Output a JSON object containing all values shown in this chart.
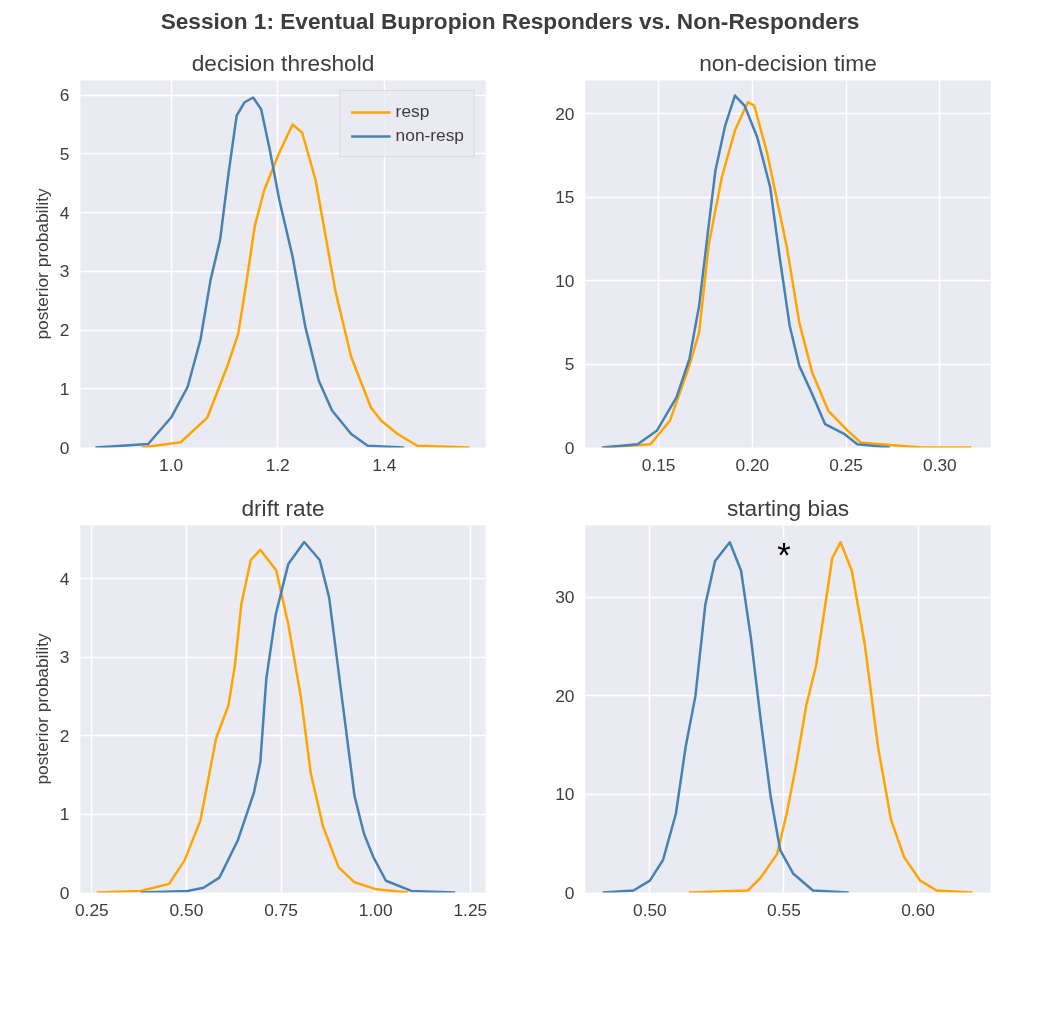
{
  "chart_data": [
    {
      "type": "line",
      "title": "decision threshold",
      "ylabel": "posterior probability",
      "annotations": [
        "Session 1: Eventual Bupropion Responders vs. Non-Responders"
      ],
      "grid": true,
      "legend": "top right",
      "marker": "none",
      "line_style": "solid",
      "xlim": [
        0.83,
        1.59
      ],
      "ylim": [
        0,
        6.25
      ],
      "xticks": [
        {
          "value": 1.0,
          "label": "1.0"
        },
        {
          "value": 1.2,
          "label": "1.2"
        },
        {
          "value": 1.4,
          "label": "1.4"
        }
      ],
      "yticks": [
        0,
        1,
        2,
        3,
        4,
        5,
        6
      ],
      "series": [
        {
          "name": "resp",
          "color": "#ffa500",
          "x": [
            0.945,
            1.018,
            1.068,
            1.105,
            1.126,
            1.142,
            1.157,
            1.175,
            1.203,
            1.228,
            1.246,
            1.271,
            1.289,
            1.308,
            1.338,
            1.375,
            1.394,
            1.425,
            1.462,
            1.56
          ],
          "values": [
            0,
            0.09,
            0.51,
            1.37,
            1.94,
            2.85,
            3.77,
            4.39,
            5.02,
            5.5,
            5.36,
            4.56,
            3.65,
            2.68,
            1.54,
            0.68,
            0.46,
            0.23,
            0.03,
            0
          ]
        },
        {
          "name": "non-resp",
          "color": "#4682b4",
          "x": [
            0.858,
            0.957,
            1.0,
            1.031,
            1.055,
            1.074,
            1.092,
            1.108,
            1.123,
            1.138,
            1.154,
            1.169,
            1.185,
            1.203,
            1.228,
            1.252,
            1.277,
            1.302,
            1.338,
            1.369,
            1.437
          ],
          "values": [
            0,
            0.06,
            0.51,
            1.03,
            1.83,
            2.85,
            3.54,
            4.68,
            5.65,
            5.88,
            5.96,
            5.76,
            5.08,
            4.22,
            3.25,
            2.05,
            1.14,
            0.63,
            0.23,
            0.03,
            0
          ]
        }
      ]
    },
    {
      "type": "line",
      "title": "non-decision time",
      "grid": true,
      "marker": "none",
      "line_style": "solid",
      "xlim": [
        0.111,
        0.327
      ],
      "ylim": [
        0,
        22
      ],
      "xticks": [
        {
          "value": 0.15,
          "label": "0.15"
        },
        {
          "value": 0.2,
          "label": "0.20"
        },
        {
          "value": 0.25,
          "label": "0.25"
        },
        {
          "value": 0.3,
          "label": "0.30"
        }
      ],
      "yticks": [
        0,
        5,
        10,
        15,
        20
      ],
      "series": [
        {
          "color": "#ffa500",
          "x": [
            0.1214,
            0.1457,
            0.156,
            0.1664,
            0.1716,
            0.1768,
            0.1837,
            0.1907,
            0.1976,
            0.201,
            0.208,
            0.2184,
            0.225,
            0.2319,
            0.2405,
            0.2509,
            0.2578,
            0.2733,
            0.2906,
            0.3167
          ],
          "values": [
            0,
            0.2,
            1.6,
            4.9,
            6.9,
            12.2,
            16.2,
            19.0,
            20.7,
            20.5,
            17.6,
            12.0,
            7.5,
            4.5,
            2.2,
            1.0,
            0.3,
            0.15,
            0,
            0
          ]
        },
        {
          "color": "#4682b4",
          "x": [
            0.1197,
            0.1388,
            0.149,
            0.1595,
            0.1664,
            0.1716,
            0.1768,
            0.1803,
            0.1855,
            0.1907,
            0.1958,
            0.2026,
            0.2095,
            0.2147,
            0.2199,
            0.225,
            0.2319,
            0.2388,
            0.2492,
            0.256,
            0.2733
          ],
          "values": [
            0,
            0.2,
            1.0,
            3.0,
            5.3,
            8.5,
            13.4,
            16.6,
            19.3,
            21.1,
            20.5,
            18.6,
            15.6,
            11.3,
            7.3,
            4.9,
            3.2,
            1.4,
            0.8,
            0.2,
            0
          ]
        }
      ]
    },
    {
      "type": "line",
      "title": "drift rate",
      "ylabel": "posterior probability",
      "grid": true,
      "marker": "none",
      "line_style": "solid",
      "xlim": [
        0.22,
        1.29
      ],
      "ylim": [
        0,
        4.68
      ],
      "xticks": [
        {
          "value": 0.25,
          "label": "0.25"
        },
        {
          "value": 0.5,
          "label": "0.50"
        },
        {
          "value": 0.75,
          "label": "0.75"
        },
        {
          "value": 1.0,
          "label": "1.00"
        },
        {
          "value": 1.25,
          "label": "1.25"
        }
      ],
      "yticks": [
        0,
        1,
        2,
        3,
        4
      ],
      "series": [
        {
          "color": "#ffa500",
          "x": [
            0.2625,
            0.379,
            0.454,
            0.495,
            0.537,
            0.578,
            0.611,
            0.628,
            0.645,
            0.67,
            0.695,
            0.737,
            0.769,
            0.803,
            0.828,
            0.861,
            0.902,
            0.944,
            1.002,
            1.085
          ],
          "values": [
            0,
            0.02,
            0.11,
            0.41,
            0.92,
            1.96,
            2.39,
            2.9,
            3.68,
            4.24,
            4.37,
            4.11,
            3.42,
            2.47,
            1.53,
            0.84,
            0.32,
            0.13,
            0.04,
            0
          ]
        },
        {
          "color": "#4682b4",
          "x": [
            0.379,
            0.503,
            0.545,
            0.587,
            0.636,
            0.678,
            0.695,
            0.711,
            0.736,
            0.769,
            0.811,
            0.852,
            0.877,
            0.911,
            0.944,
            0.969,
            0.994,
            1.027,
            1.094,
            1.21
          ],
          "values": [
            0,
            0.02,
            0.06,
            0.19,
            0.67,
            1.27,
            1.66,
            2.73,
            3.55,
            4.19,
            4.47,
            4.24,
            3.76,
            2.47,
            1.23,
            0.75,
            0.45,
            0.15,
            0.02,
            0
          ]
        }
      ]
    },
    {
      "type": "line",
      "title": "starting bias",
      "grid": true,
      "marker": "none",
      "line_style": "solid",
      "annotations": [
        "*"
      ],
      "xlim": [
        0.476,
        0.627
      ],
      "ylim": [
        0,
        37.3
      ],
      "xticks": [
        {
          "value": 0.5,
          "label": "0.50"
        },
        {
          "value": 0.55,
          "label": "0.55"
        },
        {
          "value": 0.6,
          "label": "0.60"
        }
      ],
      "yticks": [
        0,
        10,
        20,
        30
      ],
      "series": [
        {
          "color": "#ffa500",
          "x": [
            0.5146,
            0.5365,
            0.5413,
            0.5474,
            0.551,
            0.5547,
            0.5583,
            0.562,
            0.5656,
            0.568,
            0.5711,
            0.5753,
            0.5802,
            0.585,
            0.5899,
            0.5948,
            0.6008,
            0.6069,
            0.6203
          ],
          "values": [
            0,
            0.2,
            1.5,
            3.9,
            8.0,
            13.2,
            19.0,
            23.1,
            29.6,
            34.0,
            35.6,
            32.7,
            25.1,
            14.9,
            7.4,
            3.6,
            1.2,
            0.2,
            0
          ]
        },
        {
          "color": "#4682b4",
          "x": [
            0.4824,
            0.4939,
            0.5,
            0.5049,
            0.5097,
            0.5134,
            0.517,
            0.5207,
            0.5243,
            0.5298,
            0.534,
            0.5377,
            0.5413,
            0.545,
            0.5486,
            0.5535,
            0.5608,
            0.5741
          ],
          "values": [
            0,
            0.2,
            1.2,
            3.3,
            8.0,
            14.9,
            20.0,
            29.3,
            33.7,
            35.6,
            32.7,
            25.8,
            17.6,
            9.8,
            4.3,
            1.9,
            0.2,
            0
          ]
        }
      ]
    }
  ]
}
